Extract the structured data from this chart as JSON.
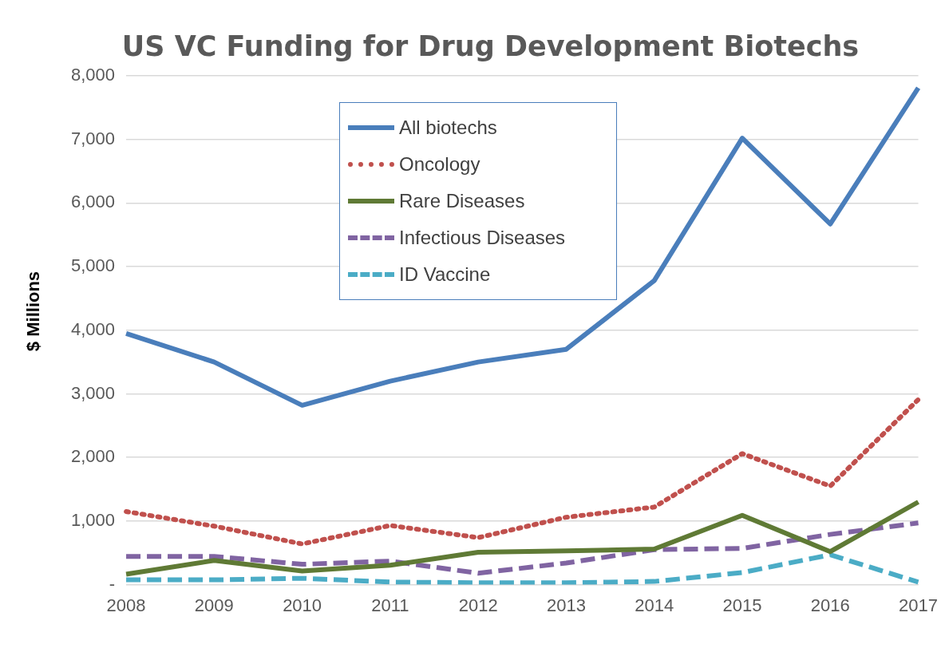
{
  "chart_data": {
    "type": "line",
    "title": "US VC Funding for Drug Development Biotechs",
    "ylabel": "$ Millions",
    "categories": [
      "2008",
      "2009",
      "2010",
      "2011",
      "2012",
      "2013",
      "2014",
      "2015",
      "2016",
      "2017"
    ],
    "series": [
      {
        "name": "All biotechs",
        "color": "#4a7ebb",
        "line_style": "solid",
        "values": [
          3950,
          3500,
          2820,
          3200,
          3500,
          3700,
          4780,
          7020,
          5670,
          7810
        ]
      },
      {
        "name": "Oncology",
        "color": "#c0504d",
        "line_style": "dotted",
        "values": [
          1150,
          920,
          640,
          930,
          740,
          1060,
          1220,
          2060,
          1550,
          2910
        ]
      },
      {
        "name": "Rare Diseases",
        "color": "#5f7a35",
        "line_style": "solid",
        "values": [
          165,
          380,
          215,
          305,
          510,
          530,
          560,
          1090,
          520,
          1300
        ]
      },
      {
        "name": "Infectious Diseases",
        "color": "#8064a2",
        "line_style": "dashed",
        "values": [
          445,
          445,
          320,
          370,
          180,
          340,
          550,
          570,
          790,
          970
        ]
      },
      {
        "name": "ID Vaccine",
        "color": "#4bacc6",
        "line_style": "dashed",
        "values": [
          75,
          75,
          100,
          40,
          30,
          30,
          50,
          190,
          470,
          40
        ]
      }
    ],
    "ylim": [
      0,
      8000
    ],
    "yticks": [
      {
        "value": 0,
        "label": "-"
      },
      {
        "value": 1000,
        "label": "1,000"
      },
      {
        "value": 2000,
        "label": "2,000"
      },
      {
        "value": 3000,
        "label": "3,000"
      },
      {
        "value": 4000,
        "label": "4,000"
      },
      {
        "value": 5000,
        "label": "5,000"
      },
      {
        "value": 6000,
        "label": "6,000"
      },
      {
        "value": 7000,
        "label": "7,000"
      },
      {
        "value": 8000,
        "label": "8,000"
      }
    ],
    "grid": "y",
    "legend": "top",
    "marker": "none"
  }
}
